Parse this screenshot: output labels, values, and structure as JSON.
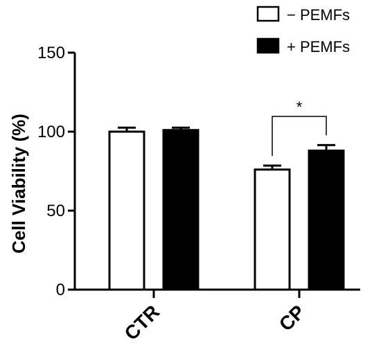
{
  "chart_data": {
    "type": "bar",
    "title": "",
    "xlabel": "",
    "ylabel": "Cell Viability (%)",
    "ylim": [
      0,
      150
    ],
    "yticks": [
      0,
      50,
      100,
      150
    ],
    "categories": [
      "CTR",
      "CP"
    ],
    "series": [
      {
        "name": "− PEMFs",
        "fill": "#ffffff",
        "values": [
          100,
          76
        ],
        "errors": [
          2.5,
          2.5
        ]
      },
      {
        "name": "+ PEMFs",
        "fill": "#000000",
        "values": [
          101,
          88
        ],
        "errors": [
          1.5,
          3.5
        ]
      }
    ],
    "significance": [
      {
        "category": "CP",
        "label": "*"
      }
    ],
    "legend_position": "top-right",
    "grid": false
  }
}
